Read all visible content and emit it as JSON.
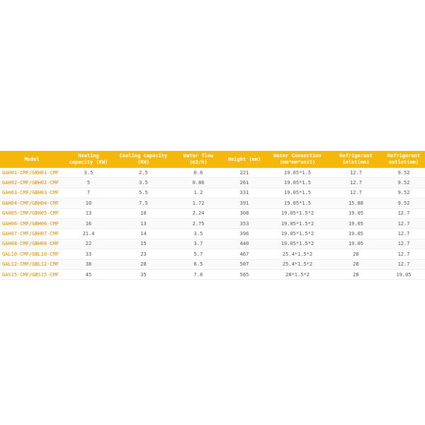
{
  "table": {
    "header": [
      "Model",
      "Heating capacity (KW)",
      "Cooling capacity (KW)",
      "Water flow (m3/h)",
      "Height (mm)",
      "Water Connection (mm*mm*unit)",
      "Refrigerant inlet(mm)",
      "Refrigerant outlet(mm)"
    ],
    "rows": [
      [
        "GAH01-CMF/GBH01-CMF",
        "3.5",
        "2.5",
        "0.6",
        "221",
        "19.05*1.5",
        "12.7",
        "9.52"
      ],
      [
        "GAH02-CMF/GBH02-CMF",
        "5",
        "3.5",
        "0.86",
        "261",
        "19.05*1.5",
        "12.7",
        "9.52"
      ],
      [
        "GAH03-CMF/GBH03-CMF",
        "7",
        "5.5",
        "1.2",
        "331",
        "19.05*1.5",
        "12.7",
        "9.52"
      ],
      [
        "GAH04-CMF/GBH04-CMF",
        "10",
        "7.5",
        "1.72",
        "391",
        "19.05*1.5",
        "15.88",
        "9.52"
      ],
      [
        "GAH05-CMF/GBH05-CMF",
        "13",
        "10",
        "2.24",
        "308",
        "19.05*1.5*2",
        "19.05",
        "12.7"
      ],
      [
        "GAH06-CMF/GBH06-CMF",
        "16",
        "13",
        "2.75",
        "353",
        "19.05*1.5*2",
        "19.05",
        "12.7"
      ],
      [
        "GAH07-CMF/GBH07-CMF",
        "21.4",
        "14",
        "3.5",
        "396",
        "19.05*1.5*2",
        "19.05",
        "12.7"
      ],
      [
        "GAH08-CMF/GBH08-CMF",
        "22",
        "15",
        "3.7",
        "440",
        "19.05*1.5*2",
        "19.05",
        "12.7"
      ],
      [
        "GAL10-CMF/GBL10-CMF",
        "33",
        "23",
        "5.7",
        "467",
        "25.4*1.5*2",
        "28",
        "12.7"
      ],
      [
        "GAL12-CMF/GBL12-CMF",
        "38",
        "28",
        "6.5",
        "507",
        "25.4*1.5*2",
        "28",
        "12.7"
      ],
      [
        "GAS15-CMF/GBS15-CMF",
        "45",
        "35",
        "7.8",
        "565",
        "28*1.5*2",
        "28",
        "19.05"
      ]
    ]
  }
}
